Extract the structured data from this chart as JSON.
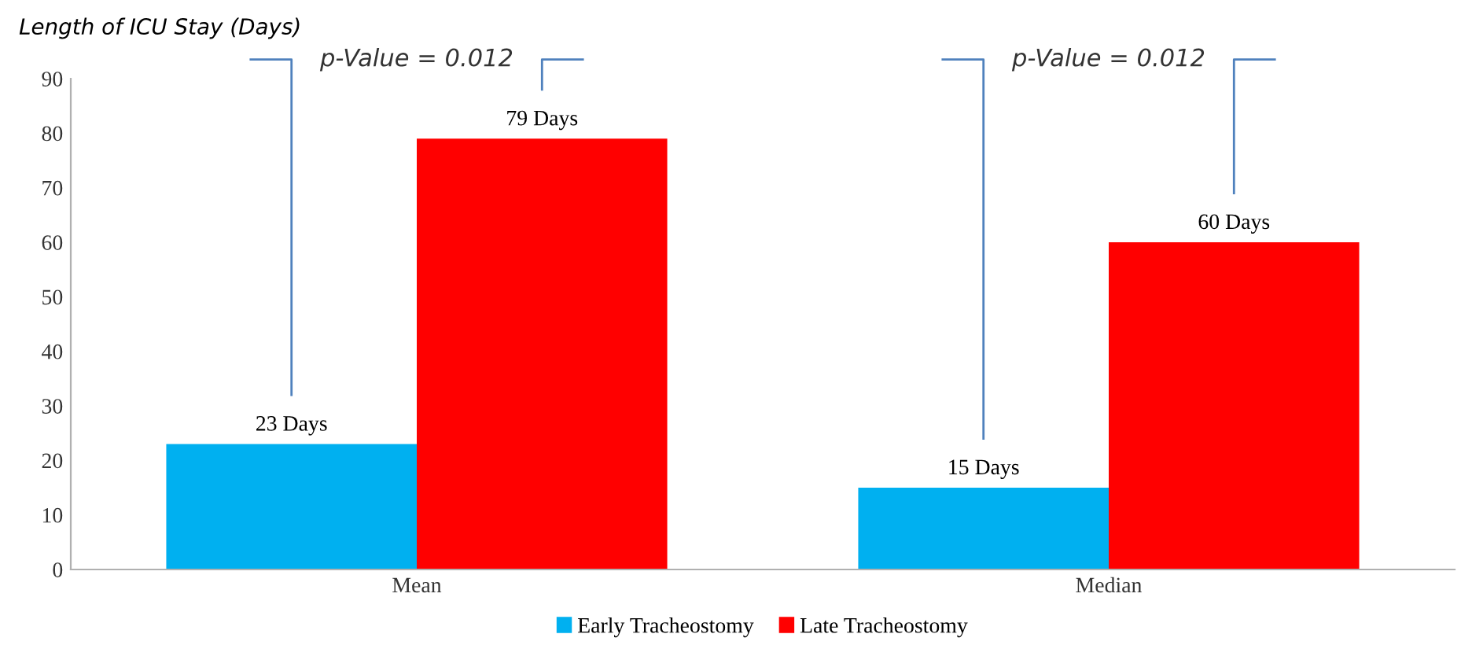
{
  "chart_data": {
    "type": "bar",
    "ylabel": "Length of ICU Stay (Days)",
    "categories": [
      "Mean",
      "Median"
    ],
    "series": [
      {
        "name": "Early Tracheostomy",
        "color": "#00b0f0",
        "values": [
          23,
          15
        ],
        "value_labels": [
          "23 Days",
          "15 Days"
        ]
      },
      {
        "name": "Late Tracheostomy",
        "color": "#ff0000",
        "values": [
          79,
          60
        ],
        "value_labels": [
          "79 Days",
          "60 Days"
        ]
      }
    ],
    "ylim": [
      0,
      90
    ],
    "yticks": [
      0,
      10,
      20,
      30,
      40,
      50,
      60,
      70,
      80,
      90
    ],
    "grid": false,
    "legend": "bottom",
    "annotations": [
      "p-Value = 0.012",
      "p-Value = 0.012"
    ]
  }
}
